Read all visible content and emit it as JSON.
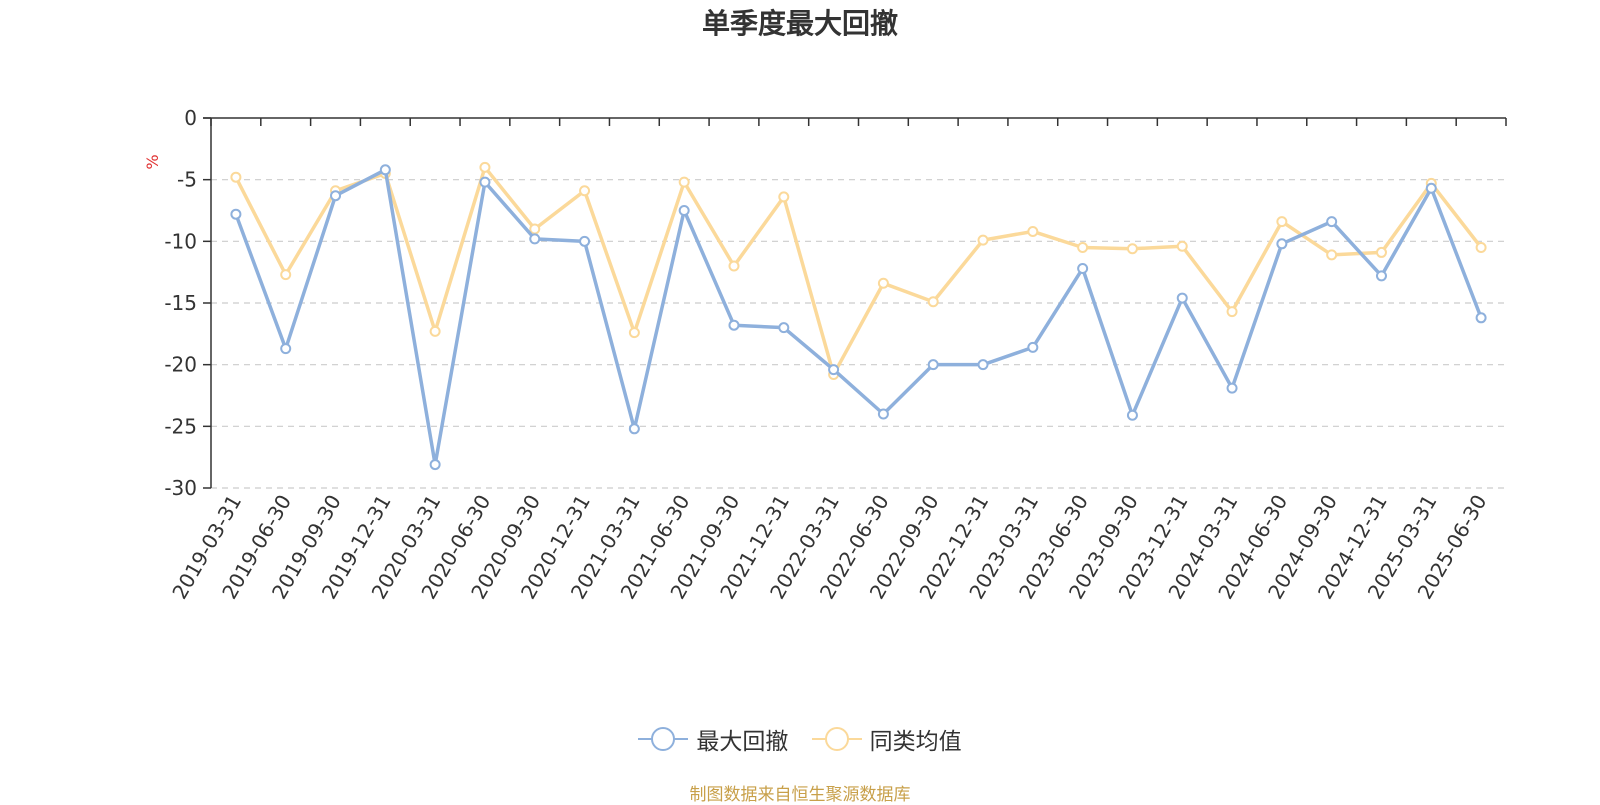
{
  "chart_data": {
    "type": "line",
    "title": "单季度最大回撤",
    "ylabel": "%",
    "ylim": [
      -30,
      0
    ],
    "yticks": [
      0,
      -5,
      -10,
      -15,
      -20,
      -25,
      -30
    ],
    "grid": true,
    "legend_position": "bottom",
    "categories": [
      "2019-03-31",
      "2019-06-30",
      "2019-09-30",
      "2019-12-31",
      "2020-03-31",
      "2020-06-30",
      "2020-09-30",
      "2020-12-31",
      "2021-03-31",
      "2021-06-30",
      "2021-09-30",
      "2021-12-31",
      "2022-03-31",
      "2022-06-30",
      "2022-09-30",
      "2022-12-31",
      "2023-03-31",
      "2023-06-30",
      "2023-09-30",
      "2023-12-31",
      "2024-03-31",
      "2024-06-30",
      "2024-09-30",
      "2024-12-31",
      "2025-03-31",
      "2025-06-30"
    ],
    "series": [
      {
        "name": "最大回撤",
        "color": "#8eb0dc",
        "values": [
          -7.8,
          -18.7,
          -6.3,
          -4.2,
          -28.1,
          -5.2,
          -9.8,
          -10.0,
          -25.2,
          -7.5,
          -16.8,
          -17.0,
          -20.4,
          -24.0,
          -20.0,
          -20.0,
          -18.6,
          -12.2,
          -24.1,
          -14.6,
          -21.9,
          -10.2,
          -8.4,
          -12.8,
          -5.7,
          -16.2
        ]
      },
      {
        "name": "同类均值",
        "color": "#fbd99a",
        "values": [
          -4.8,
          -12.7,
          -5.9,
          -4.5,
          -17.3,
          -4.0,
          -9.0,
          -5.9,
          -17.4,
          -5.2,
          -12.0,
          -6.4,
          -20.8,
          -13.4,
          -14.9,
          -9.9,
          -9.2,
          -10.5,
          -10.6,
          -10.4,
          -15.7,
          -8.4,
          -11.1,
          -10.9,
          -5.3,
          -10.5
        ]
      }
    ]
  },
  "source_note": "制图数据来自恒生聚源数据库"
}
